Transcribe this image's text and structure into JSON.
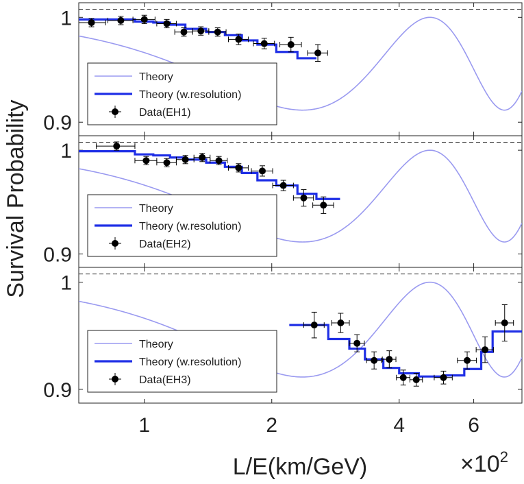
{
  "figure": {
    "ylabel": "Survival Probability",
    "xlabel": "L/E(km/GeV)",
    "x_multiplier": "×10",
    "x_multiplier_exp": "2",
    "x_scale": "log",
    "colors": {
      "theory": "#9a9af0",
      "theory_res": "#1f2fe6",
      "data": "#000000",
      "unity": "#333333"
    }
  },
  "chart_data": [
    {
      "type": "line",
      "panel": "EH1",
      "xlim": [
        70,
        780
      ],
      "ylim": [
        0.891,
        1.01
      ],
      "ytick_values": [
        0.9,
        1
      ],
      "ytick_labels": [
        "0.9",
        "1"
      ],
      "xtick_values": [
        100,
        200,
        400,
        600
      ],
      "xtick_labels": [],
      "legend_position": "bottom-left",
      "legend": [
        "Theory",
        "Theory (w.resolution)",
        "Data(EH1)"
      ],
      "series": [
        {
          "name": "Theory",
          "kind": "curve"
        },
        {
          "name": "Theory (w.resolution)",
          "kind": "step",
          "edges": [
            70,
            95,
            105,
            115,
            125,
            140,
            155,
            170,
            185,
            205,
            230,
            255
          ],
          "values": [
            0.998,
            0.996,
            0.995,
            0.993,
            0.989,
            0.986,
            0.983,
            0.978,
            0.974,
            0.967,
            0.961
          ]
        },
        {
          "name": "Data(EH1)",
          "kind": "errorbar",
          "x": [
            75,
            88,
            100,
            113,
            124,
            136,
            149,
            167,
            192,
            222,
            257
          ],
          "xerr": [
            6,
            6,
            6,
            6,
            6,
            6,
            7,
            9,
            11,
            13,
            14
          ],
          "y": [
            0.995,
            0.997,
            0.998,
            0.994,
            0.986,
            0.987,
            0.986,
            0.979,
            0.975,
            0.974,
            0.966
          ],
          "yerr": [
            0.004,
            0.004,
            0.004,
            0.004,
            0.004,
            0.004,
            0.004,
            0.005,
            0.005,
            0.007,
            0.008
          ]
        }
      ]
    },
    {
      "type": "line",
      "panel": "EH2",
      "xlim": [
        70,
        780
      ],
      "ylim": [
        0.891,
        1.01
      ],
      "ytick_values": [
        0.9,
        1
      ],
      "ytick_labels": [
        "0.9",
        "1"
      ],
      "xtick_values": [
        100,
        200,
        400,
        600
      ],
      "xtick_labels": [],
      "legend_position": "bottom-left",
      "legend": [
        "Theory",
        "Theory (w.resolution)",
        "Data(EH2)"
      ],
      "series": [
        {
          "name": "Theory",
          "kind": "curve"
        },
        {
          "name": "Theory (w.resolution)",
          "kind": "step",
          "edges": [
            70,
            95,
            105,
            115,
            125,
            140,
            155,
            170,
            185,
            205,
            230,
            255,
            290
          ],
          "values": [
            0.999,
            0.996,
            0.995,
            0.993,
            0.991,
            0.988,
            0.984,
            0.978,
            0.971,
            0.966,
            0.958,
            0.953
          ]
        },
        {
          "name": "Data(EH2)",
          "kind": "errorbar",
          "x": [
            86,
            101,
            113,
            125,
            137,
            150,
            167,
            190,
            213,
            238,
            265
          ],
          "xerr": [
            9,
            6,
            6,
            6,
            6,
            7,
            9,
            11,
            12,
            13,
            15
          ],
          "y": [
            1.004,
            0.99,
            0.988,
            0.991,
            0.993,
            0.99,
            0.983,
            0.98,
            0.966,
            0.954,
            0.947
          ],
          "yerr": [
            0.004,
            0.004,
            0.004,
            0.004,
            0.004,
            0.004,
            0.004,
            0.005,
            0.005,
            0.008,
            0.008
          ]
        }
      ]
    },
    {
      "type": "line",
      "panel": "EH3",
      "xlim": [
        70,
        780
      ],
      "ylim": [
        0.891,
        1.01
      ],
      "ytick_values": [
        0.9,
        1
      ],
      "ytick_labels": [
        "0.9",
        "1"
      ],
      "xtick_values": [
        100,
        200,
        400,
        600
      ],
      "xtick_labels": [
        "1",
        "2",
        "4",
        "6"
      ],
      "legend_position": "bottom-left",
      "legend": [
        "Theory",
        "Theory (w.resolution)",
        "Data(EH3)"
      ],
      "series": [
        {
          "name": "Theory",
          "kind": "curve"
        },
        {
          "name": "Theory (w.resolution)",
          "kind": "step",
          "edges": [
            220,
            272,
            305,
            332,
            367,
            400,
            445,
            515,
            570,
            625,
            665,
            780
          ],
          "values": [
            0.96,
            0.947,
            0.938,
            0.928,
            0.92,
            0.915,
            0.912,
            0.913,
            0.919,
            0.935,
            0.954
          ]
        },
        {
          "name": "Data(EH3)",
          "kind": "errorbar",
          "x": [
            252,
            291,
            318,
            349,
            379,
            409,
            439,
            509,
            579,
            638,
            710
          ],
          "xerr": [
            14,
            14,
            13,
            14,
            14,
            15,
            15,
            25,
            30,
            30,
            35
          ],
          "y": [
            0.96,
            0.962,
            0.943,
            0.927,
            0.928,
            0.911,
            0.909,
            0.911,
            0.927,
            0.937,
            0.962
          ],
          "yerr": [
            0.012,
            0.009,
            0.008,
            0.008,
            0.008,
            0.007,
            0.006,
            0.006,
            0.008,
            0.012,
            0.017
          ]
        }
      ]
    }
  ]
}
